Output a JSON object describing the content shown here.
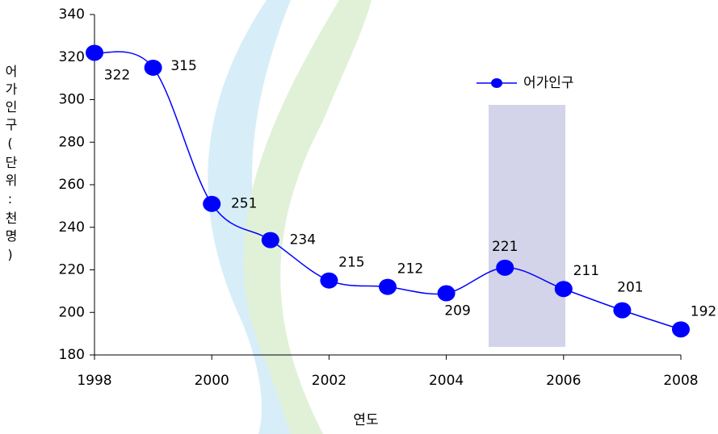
{
  "chart_data": {
    "type": "line",
    "x_label": "연도",
    "y_label": "어가인구(단위:천명)",
    "x": [
      1998,
      1999,
      2000,
      2001,
      2002,
      2003,
      2004,
      2005,
      2006,
      2007,
      2008
    ],
    "series": [
      {
        "name": "어가인구",
        "color": "#0000ff",
        "values": [
          322,
          315,
          251,
          234,
          215,
          212,
          209,
          221,
          211,
          201,
          192
        ]
      }
    ],
    "xlim": [
      1998,
      2008
    ],
    "xticks": [
      1998,
      2000,
      2002,
      2004,
      2006,
      2008
    ],
    "ylim": [
      180,
      340
    ],
    "yticks": [
      180,
      200,
      220,
      240,
      260,
      280,
      300,
      320,
      340
    ],
    "legend": "upper right",
    "smooth": true
  }
}
